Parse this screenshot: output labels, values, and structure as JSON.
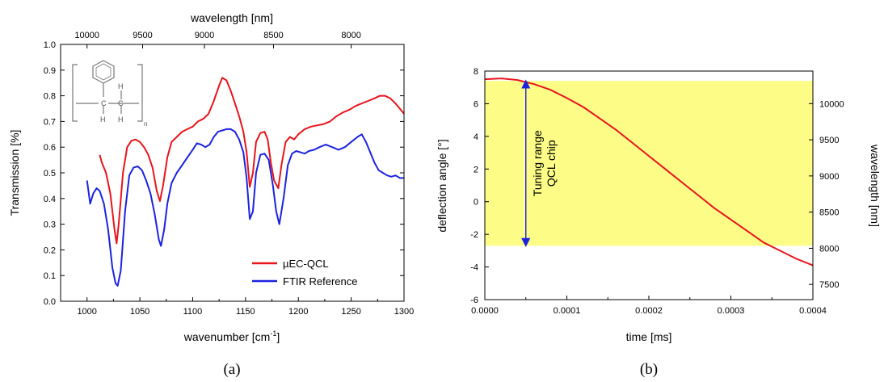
{
  "colors": {
    "red": "#e8141c",
    "blue": "#1c22e0",
    "yellow": "#fcfc86"
  },
  "structure_labels": {
    "h1": "H",
    "h2": "H",
    "h3": "H",
    "h4": "H",
    "n": "n"
  },
  "chart_data": [
    {
      "panel_label": "(a)",
      "type": "line",
      "xlabel": "wavenumber [cm",
      "xlabel_sup": "-1",
      "xlabel_end": "]",
      "ylabel": "Transmission [%]",
      "x2label": "wavelength [nm]",
      "xlim": [
        975,
        1300
      ],
      "ylim": [
        0,
        1.0
      ],
      "x_ticks": [
        "1000",
        "1050",
        "1100",
        "1150",
        "1200",
        "1250",
        "1300"
      ],
      "x_tick_values": [
        1000,
        1050,
        1100,
        1150,
        1200,
        1250,
        1300
      ],
      "y_ticks": [
        "0.0",
        "0.1",
        "0.2",
        "0.3",
        "0.4",
        "0.5",
        "0.6",
        "0.7",
        "0.8",
        "0.9",
        "1.0"
      ],
      "y_tick_values": [
        0,
        0.1,
        0.2,
        0.3,
        0.4,
        0.5,
        0.6,
        0.7,
        0.8,
        0.9,
        1.0
      ],
      "x2_ticks": [
        "10000",
        "9500",
        "9000",
        "8500",
        "8000"
      ],
      "x2_tick_values": [
        10000,
        9500,
        9000,
        8500,
        8000
      ],
      "legend_position": "bottom-right",
      "series": [
        {
          "name": "µEC-QCL",
          "color": "#e8141c",
          "x": [
            1012,
            1014,
            1018,
            1022,
            1026,
            1028,
            1030,
            1034,
            1038,
            1042,
            1046,
            1050,
            1054,
            1058,
            1062,
            1066,
            1069,
            1072,
            1076,
            1080,
            1085,
            1090,
            1095,
            1100,
            1105,
            1110,
            1115,
            1120,
            1125,
            1128,
            1132,
            1136,
            1140,
            1144,
            1148,
            1151,
            1154,
            1157,
            1160,
            1164,
            1168,
            1171,
            1174,
            1177,
            1181,
            1184,
            1188,
            1192,
            1196,
            1200,
            1206,
            1212,
            1218,
            1224,
            1230,
            1236,
            1242,
            1248,
            1254,
            1260,
            1266,
            1272,
            1277,
            1282,
            1287,
            1292,
            1296,
            1300
          ],
          "y": [
            0.57,
            0.54,
            0.5,
            0.42,
            0.28,
            0.225,
            0.3,
            0.5,
            0.6,
            0.625,
            0.63,
            0.62,
            0.6,
            0.57,
            0.52,
            0.43,
            0.39,
            0.45,
            0.56,
            0.62,
            0.64,
            0.66,
            0.67,
            0.68,
            0.7,
            0.71,
            0.73,
            0.78,
            0.84,
            0.87,
            0.86,
            0.82,
            0.77,
            0.72,
            0.66,
            0.58,
            0.445,
            0.5,
            0.62,
            0.655,
            0.66,
            0.63,
            0.54,
            0.47,
            0.44,
            0.53,
            0.62,
            0.64,
            0.63,
            0.65,
            0.67,
            0.68,
            0.685,
            0.69,
            0.7,
            0.72,
            0.735,
            0.745,
            0.76,
            0.77,
            0.78,
            0.79,
            0.8,
            0.8,
            0.79,
            0.77,
            0.75,
            0.73
          ]
        },
        {
          "name": "FTIR Reference",
          "color": "#1c22e0",
          "x": [
            1000,
            1003,
            1006,
            1009,
            1012,
            1016,
            1020,
            1024,
            1027,
            1029,
            1032,
            1036,
            1040,
            1044,
            1048,
            1052,
            1056,
            1060,
            1064,
            1068,
            1070,
            1073,
            1076,
            1080,
            1085,
            1090,
            1095,
            1100,
            1104,
            1108,
            1112,
            1116,
            1120,
            1124,
            1128,
            1132,
            1136,
            1140,
            1144,
            1148,
            1151,
            1154,
            1157,
            1160,
            1164,
            1168,
            1172,
            1176,
            1179,
            1182,
            1186,
            1190,
            1194,
            1198,
            1202,
            1206,
            1210,
            1215,
            1220,
            1226,
            1232,
            1238,
            1244,
            1250,
            1256,
            1260,
            1264,
            1268,
            1272,
            1276,
            1280,
            1284,
            1288,
            1292,
            1296,
            1300
          ],
          "y": [
            0.47,
            0.38,
            0.42,
            0.44,
            0.43,
            0.38,
            0.28,
            0.13,
            0.07,
            0.06,
            0.12,
            0.35,
            0.49,
            0.52,
            0.525,
            0.51,
            0.47,
            0.42,
            0.34,
            0.24,
            0.215,
            0.28,
            0.38,
            0.46,
            0.5,
            0.53,
            0.56,
            0.59,
            0.615,
            0.61,
            0.6,
            0.61,
            0.64,
            0.66,
            0.665,
            0.67,
            0.67,
            0.66,
            0.63,
            0.58,
            0.48,
            0.32,
            0.35,
            0.5,
            0.57,
            0.575,
            0.55,
            0.45,
            0.35,
            0.3,
            0.4,
            0.53,
            0.575,
            0.585,
            0.58,
            0.575,
            0.585,
            0.59,
            0.6,
            0.61,
            0.6,
            0.59,
            0.6,
            0.62,
            0.64,
            0.65,
            0.62,
            0.58,
            0.54,
            0.51,
            0.5,
            0.49,
            0.485,
            0.49,
            0.48,
            0.48
          ]
        }
      ]
    },
    {
      "panel_label": "(b)",
      "type": "line",
      "xlabel": "time [ms]",
      "ylabel": "deflection angle [°]",
      "y2label": "wavelength [nm]",
      "xlim": [
        0,
        0.0004
      ],
      "ylim": [
        -6,
        8
      ],
      "x_ticks": [
        "0.0000",
        "0.0001",
        "0.0002",
        "0.0003",
        "0.0004"
      ],
      "x_tick_values": [
        0,
        0.0001,
        0.0002,
        0.0003,
        0.0004
      ],
      "y_ticks": [
        "-6",
        "-4",
        "-2",
        "0",
        "2",
        "4",
        "6",
        "8"
      ],
      "y_tick_values": [
        -6,
        -4,
        -2,
        0,
        2,
        4,
        6,
        8
      ],
      "y2_ticks": [
        "7500",
        "8000",
        "8500",
        "9000",
        "9500",
        "10000"
      ],
      "y2_tick_values": [
        7500,
        8000,
        8500,
        9000,
        9500,
        10000
      ],
      "y2lim": [
        7290,
        10450
      ],
      "shaded_band": {
        "y_from": -2.7,
        "y_to": 7.4,
        "color": "#fcfc86"
      },
      "annotation": {
        "lines": [
          "Tuning range",
          "QCL chip"
        ],
        "arrow_x": 5e-05,
        "arrow_from": -2.7,
        "arrow_to": 7.4
      },
      "series": [
        {
          "color": "#e8141c",
          "x": [
            0,
            2e-05,
            4e-05,
            6e-05,
            8e-05,
            0.0001,
            0.00012,
            0.00014,
            0.00016,
            0.00018,
            0.0002,
            0.00022,
            0.00024,
            0.00026,
            0.00028,
            0.0003,
            0.00032,
            0.00034,
            0.00036,
            0.00038,
            0.0004
          ],
          "y": [
            7.5,
            7.55,
            7.45,
            7.2,
            6.85,
            6.35,
            5.8,
            5.1,
            4.4,
            3.6,
            2.8,
            2.0,
            1.2,
            0.4,
            -0.4,
            -1.1,
            -1.8,
            -2.5,
            -3.0,
            -3.5,
            -3.9
          ]
        }
      ]
    }
  ]
}
